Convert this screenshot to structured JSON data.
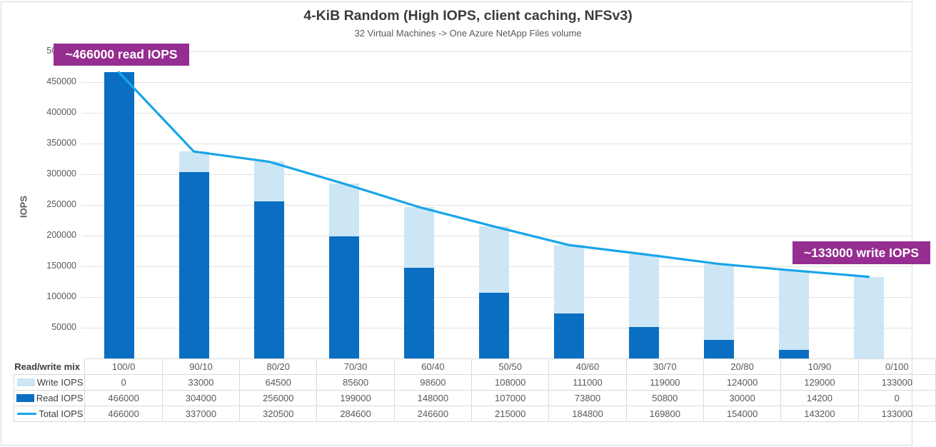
{
  "chart_data": {
    "type": "combo: stacked-bar + line",
    "title": "4-KiB Random (High IOPS, client caching, NFSv3)",
    "subtitle": "32 Virtual Machines -> One Azure NetApp Files volume",
    "ylabel": "IOPS",
    "xlabel_header": "Read/write mix",
    "ylim": [
      0,
      500000
    ],
    "ytick_step": 50000,
    "grid": true,
    "legend_position": "table-row-labels-left",
    "categories": [
      "100/0",
      "90/10",
      "80/20",
      "70/30",
      "60/40",
      "50/50",
      "40/60",
      "30/70",
      "20/80",
      "10/90",
      "0/100"
    ],
    "series": [
      {
        "name": "Write IOPS",
        "type": "bar",
        "stack_order": "top",
        "color": "#cde6f5",
        "values": [
          0,
          33000,
          64500,
          85600,
          98600,
          108000,
          111000,
          119000,
          124000,
          129000,
          133000
        ]
      },
      {
        "name": "Read IOPS",
        "type": "bar",
        "stack_order": "bottom",
        "color": "#0a6fc2",
        "values": [
          466000,
          304000,
          256000,
          199000,
          148000,
          107000,
          73800,
          50800,
          30000,
          14200,
          0
        ]
      },
      {
        "name": "Total IOPS",
        "type": "line",
        "color": "#18a5e8",
        "values": [
          466000,
          337000,
          320500,
          284600,
          246600,
          215000,
          184800,
          169800,
          154000,
          143200,
          133000
        ]
      }
    ],
    "annotations": [
      {
        "text": "~466000 read IOPS",
        "target": "first bar read peak",
        "color": "#962d90"
      },
      {
        "text": "~133000 write IOPS",
        "target": "last bar write value",
        "color": "#962d90"
      }
    ]
  },
  "colors": {
    "frame_border": "#d9d9d9",
    "gridline": "#e2e2e2",
    "table_border": "#d9d9d9",
    "tick_text": "#595959",
    "title_text": "#3b3b3b",
    "annotation_bg": "#962d90"
  }
}
